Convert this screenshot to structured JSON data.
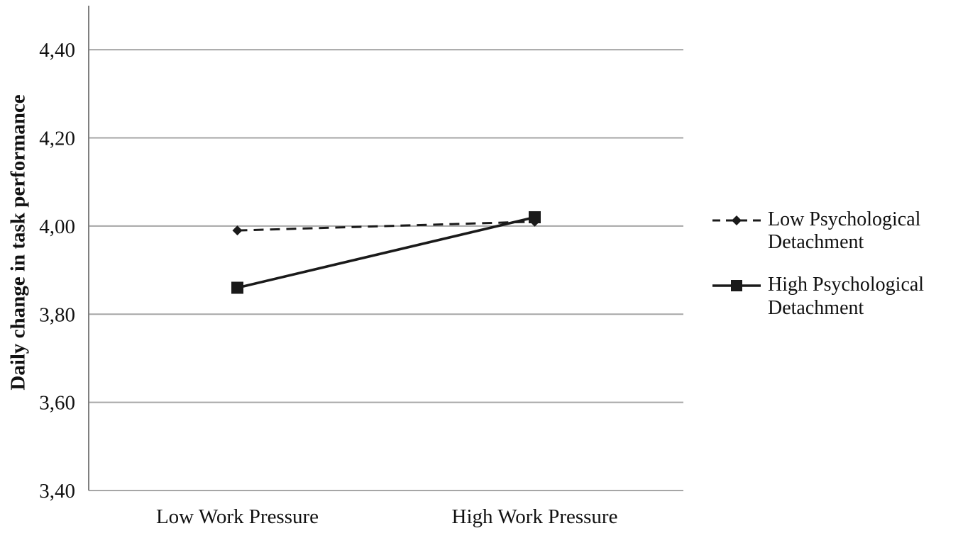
{
  "figure": {
    "background": "#ffffff"
  },
  "chart_data": {
    "type": "line",
    "title": "",
    "categories": [
      "Low Work Pressure",
      "High Work Pressure"
    ],
    "series": [
      {
        "name": "Low Psychological Detachment",
        "values": [
          3.99,
          4.01
        ],
        "line_style": "dashed",
        "marker": "diamond",
        "color": "#1a1a1a"
      },
      {
        "name": "High Psychological Detachment",
        "values": [
          3.86,
          4.02
        ],
        "line_style": "solid",
        "marker": "square",
        "color": "#1a1a1a"
      }
    ],
    "xlabel": "",
    "ylabel": "Daily change in task performance",
    "ylim": [
      3.4,
      4.5
    ],
    "yticks": [
      3.4,
      3.6,
      3.8,
      4.0,
      4.2,
      4.4
    ],
    "ytick_labels": [
      "3,40",
      "3,60",
      "3,80",
      "4,00",
      "4,20",
      "4,40"
    ],
    "grid": true,
    "gridline_color": "#a6a6a6",
    "axis_color": "#7f7f7f",
    "legend_position": "right"
  }
}
